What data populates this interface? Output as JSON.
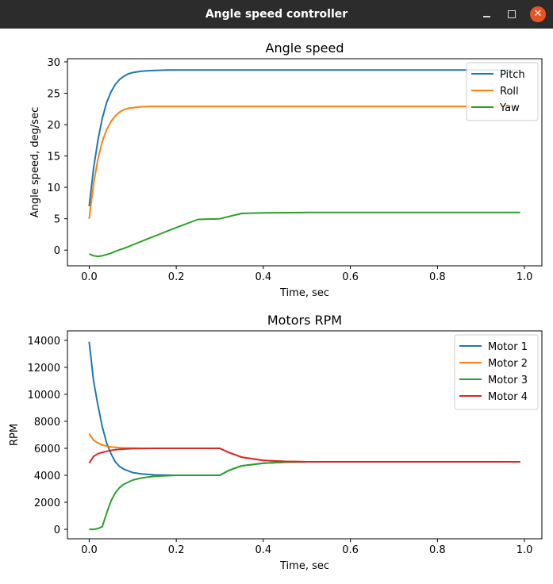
{
  "window": {
    "title": "Angle speed controller"
  },
  "chart_data": [
    {
      "type": "line",
      "title": "Angle speed",
      "xlabel": "Time, sec",
      "ylabel": "Angle speed, deg/sec",
      "xlim": [
        -0.05,
        1.04
      ],
      "ylim": [
        -2.5,
        30.5
      ],
      "xticks": [
        0.0,
        0.2,
        0.4,
        0.6,
        0.8,
        1.0
      ],
      "xtick_labels": [
        "0.0",
        "0.2",
        "0.4",
        "0.6",
        "0.8",
        "1.0"
      ],
      "yticks": [
        0,
        5,
        10,
        15,
        20,
        25,
        30
      ],
      "ytick_labels": [
        "0",
        "5",
        "10",
        "15",
        "20",
        "25",
        "30"
      ],
      "legend_position": "upper-right",
      "x": [
        0.0,
        0.01,
        0.02,
        0.03,
        0.04,
        0.05,
        0.06,
        0.07,
        0.08,
        0.09,
        0.1,
        0.12,
        0.14,
        0.16,
        0.18,
        0.2,
        0.25,
        0.3,
        0.35,
        0.4,
        0.5,
        0.6,
        0.7,
        0.8,
        0.9,
        0.99
      ],
      "series": [
        {
          "name": "Pitch",
          "color": "#1f77b4",
          "values": [
            7.0,
            13.0,
            17.5,
            21.0,
            23.5,
            25.2,
            26.4,
            27.2,
            27.7,
            28.1,
            28.3,
            28.5,
            28.6,
            28.65,
            28.7,
            28.7,
            28.7,
            28.7,
            28.7,
            28.7,
            28.7,
            28.7,
            28.7,
            28.7,
            28.7,
            28.7
          ]
        },
        {
          "name": "Roll",
          "color": "#ff7f0e",
          "values": [
            5.0,
            10.5,
            14.5,
            17.3,
            19.2,
            20.5,
            21.4,
            22.0,
            22.4,
            22.6,
            22.7,
            22.85,
            22.9,
            22.9,
            22.9,
            22.9,
            22.9,
            22.9,
            22.9,
            22.9,
            22.9,
            22.9,
            22.9,
            22.9,
            22.9,
            22.9
          ]
        },
        {
          "name": "Yaw",
          "color": "#2ca02c",
          "values": [
            -0.6,
            -0.9,
            -1.0,
            -0.9,
            -0.7,
            -0.5,
            -0.2,
            0.05,
            0.3,
            0.55,
            0.85,
            1.4,
            1.95,
            2.5,
            3.05,
            3.6,
            4.9,
            5.0,
            5.85,
            5.95,
            6.0,
            6.0,
            6.0,
            6.0,
            6.0,
            6.0
          ]
        }
      ]
    },
    {
      "type": "line",
      "title": "Motors RPM",
      "xlabel": "Time, sec",
      "ylabel": "RPM",
      "xlim": [
        -0.05,
        1.04
      ],
      "ylim": [
        -700,
        14700
      ],
      "xticks": [
        0.0,
        0.2,
        0.4,
        0.6,
        0.8,
        1.0
      ],
      "xtick_labels": [
        "0.0",
        "0.2",
        "0.4",
        "0.6",
        "0.8",
        "1.0"
      ],
      "yticks": [
        0,
        2000,
        4000,
        6000,
        8000,
        10000,
        12000,
        14000
      ],
      "ytick_labels": [
        "0",
        "2000",
        "4000",
        "6000",
        "8000",
        "10000",
        "12000",
        "14000"
      ],
      "legend_position": "upper-right",
      "x": [
        0.0,
        0.01,
        0.02,
        0.03,
        0.04,
        0.05,
        0.06,
        0.07,
        0.08,
        0.1,
        0.12,
        0.15,
        0.2,
        0.25,
        0.3,
        0.32,
        0.35,
        0.4,
        0.45,
        0.5,
        0.6,
        0.7,
        0.8,
        0.9,
        0.99
      ],
      "series": [
        {
          "name": "Motor 1",
          "color": "#1f77b4",
          "values": [
            13900,
            11000,
            9200,
            7600,
            6400,
            5600,
            5000,
            4650,
            4450,
            4200,
            4100,
            4030,
            4000,
            4000,
            4000,
            4350,
            4700,
            4900,
            4970,
            5000,
            5000,
            5000,
            5000,
            5000,
            5000
          ]
        },
        {
          "name": "Motor 2",
          "color": "#ff7f0e",
          "values": [
            7100,
            6600,
            6400,
            6250,
            6170,
            6100,
            6070,
            6050,
            6030,
            6010,
            6000,
            6000,
            6000,
            6000,
            6000,
            5700,
            5350,
            5100,
            5030,
            5000,
            5000,
            5000,
            5000,
            5000,
            5000
          ]
        },
        {
          "name": "Motor 3",
          "color": "#2ca02c",
          "values": [
            0,
            0,
            50,
            200,
            1200,
            2100,
            2700,
            3100,
            3350,
            3650,
            3800,
            3930,
            4000,
            4000,
            4000,
            4350,
            4700,
            4900,
            4970,
            5000,
            5000,
            5000,
            5000,
            5000,
            5000
          ]
        },
        {
          "name": "Motor 4",
          "color": "#d62728",
          "values": [
            4900,
            5400,
            5600,
            5700,
            5780,
            5850,
            5900,
            5930,
            5950,
            5980,
            5990,
            6000,
            6000,
            6000,
            6000,
            5700,
            5350,
            5100,
            5030,
            5000,
            5000,
            5000,
            5000,
            5000,
            5000
          ]
        }
      ]
    }
  ]
}
